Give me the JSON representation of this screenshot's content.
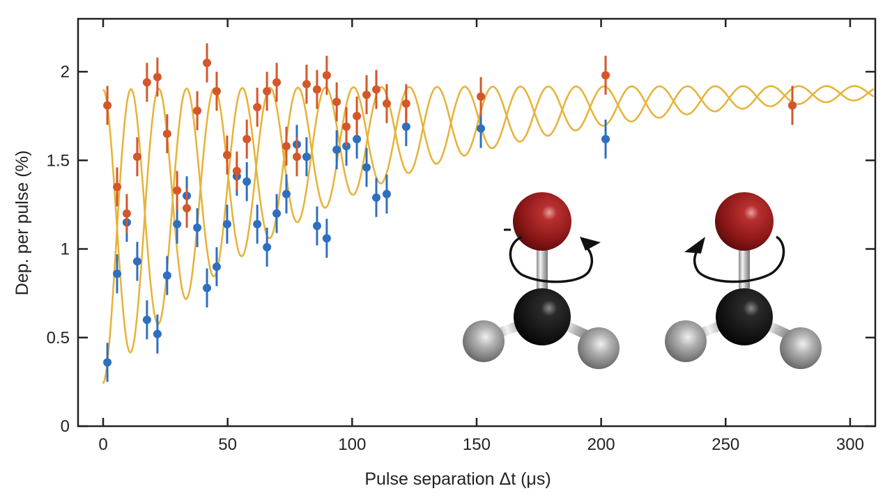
{
  "chart_data": {
    "type": "scatter",
    "title": "",
    "xlabel": "Pulse separation  Δt (μs)",
    "ylabel": "Dep. per pulse (%)",
    "xlim": [
      -10,
      310
    ],
    "ylim": [
      0,
      2.3
    ],
    "xticks": [
      0,
      50,
      100,
      150,
      200,
      250,
      300
    ],
    "yticks": [
      0,
      0.5,
      1,
      1.5,
      2
    ],
    "ytick_labels": [
      "0",
      "0.5",
      "1",
      "1.5",
      "2"
    ],
    "grid": false,
    "legend": null,
    "colors": {
      "orange": "#d4572a",
      "blue": "#2e6fbf",
      "fit": "#e6b43c",
      "axis": "#222222"
    },
    "series": [
      {
        "name": "orange",
        "color": "#d4572a",
        "x": [
          1.7,
          5.6,
          9.5,
          13.7,
          17.6,
          21.8,
          25.7,
          29.7,
          33.6,
          37.8,
          41.7,
          45.6,
          49.8,
          53.7,
          57.7,
          61.9,
          65.8,
          69.7,
          73.6,
          77.8,
          81.7,
          85.9,
          89.8,
          93.8,
          97.7,
          101.9,
          105.8,
          109.7,
          113.9,
          121.7,
          151.7,
          201.8,
          276.8
        ],
        "y": [
          1.81,
          1.35,
          1.2,
          1.52,
          1.94,
          1.97,
          1.65,
          1.33,
          1.23,
          1.78,
          2.05,
          1.89,
          1.53,
          1.44,
          1.62,
          1.8,
          1.89,
          1.94,
          1.58,
          1.52,
          1.93,
          1.9,
          1.98,
          1.83,
          1.69,
          1.75,
          1.87,
          1.9,
          1.82,
          1.82,
          1.86,
          1.98,
          1.81
        ],
        "yerr": 0.05
      },
      {
        "name": "blue",
        "color": "#2e6fbf",
        "x": [
          1.7,
          5.6,
          9.5,
          13.7,
          17.6,
          21.8,
          25.7,
          29.7,
          33.6,
          37.8,
          41.7,
          45.6,
          49.8,
          53.7,
          57.7,
          61.9,
          65.8,
          69.7,
          73.6,
          77.8,
          81.7,
          85.9,
          89.8,
          93.8,
          97.7,
          101.9,
          105.8,
          109.7,
          113.9,
          121.7,
          151.7,
          201.8,
          276.8
        ],
        "y": [
          0.36,
          0.86,
          1.15,
          0.93,
          0.6,
          0.52,
          0.85,
          1.14,
          1.3,
          1.12,
          0.78,
          0.9,
          1.14,
          1.41,
          1.38,
          1.14,
          1.01,
          1.2,
          1.31,
          1.59,
          1.52,
          1.13,
          1.06,
          1.56,
          1.58,
          1.62,
          1.46,
          1.29,
          1.31,
          1.69,
          1.68,
          1.62,
          1.81
        ],
        "yerr": 0.05
      }
    ],
    "fits": [
      {
        "name": "orange-fit",
        "model": "c(t) + A(t)*cos(2*pi*t/T)",
        "baseline": 1.92,
        "offset0": 0.85,
        "amplitude0": 0.83,
        "tau_us": 100,
        "period_us": 22.35,
        "phase_sign": 1,
        "t_range": [
          0,
          310
        ]
      },
      {
        "name": "blue-fit",
        "model": "c(t) - A(t)*cos(2*pi*t/T)",
        "baseline": 1.92,
        "offset0": 0.85,
        "amplitude0": 0.83,
        "tau_us": 100,
        "period_us": 22.35,
        "phase_sign": -1,
        "t_range": [
          0,
          310
        ]
      }
    ],
    "annotations": [
      {
        "type": "molecule-illustration",
        "description": "CH2O-like molecule, clockwise rotation arrow",
        "position": "lower-middle-right"
      },
      {
        "type": "molecule-illustration",
        "description": "CH2O-like molecule, counter-clockwise rotation arrow",
        "position": "lower-right"
      }
    ]
  },
  "labels": {
    "xlabel": "Pulse separation  Δt (μs)",
    "ylabel": "Dep. per pulse (%)"
  }
}
